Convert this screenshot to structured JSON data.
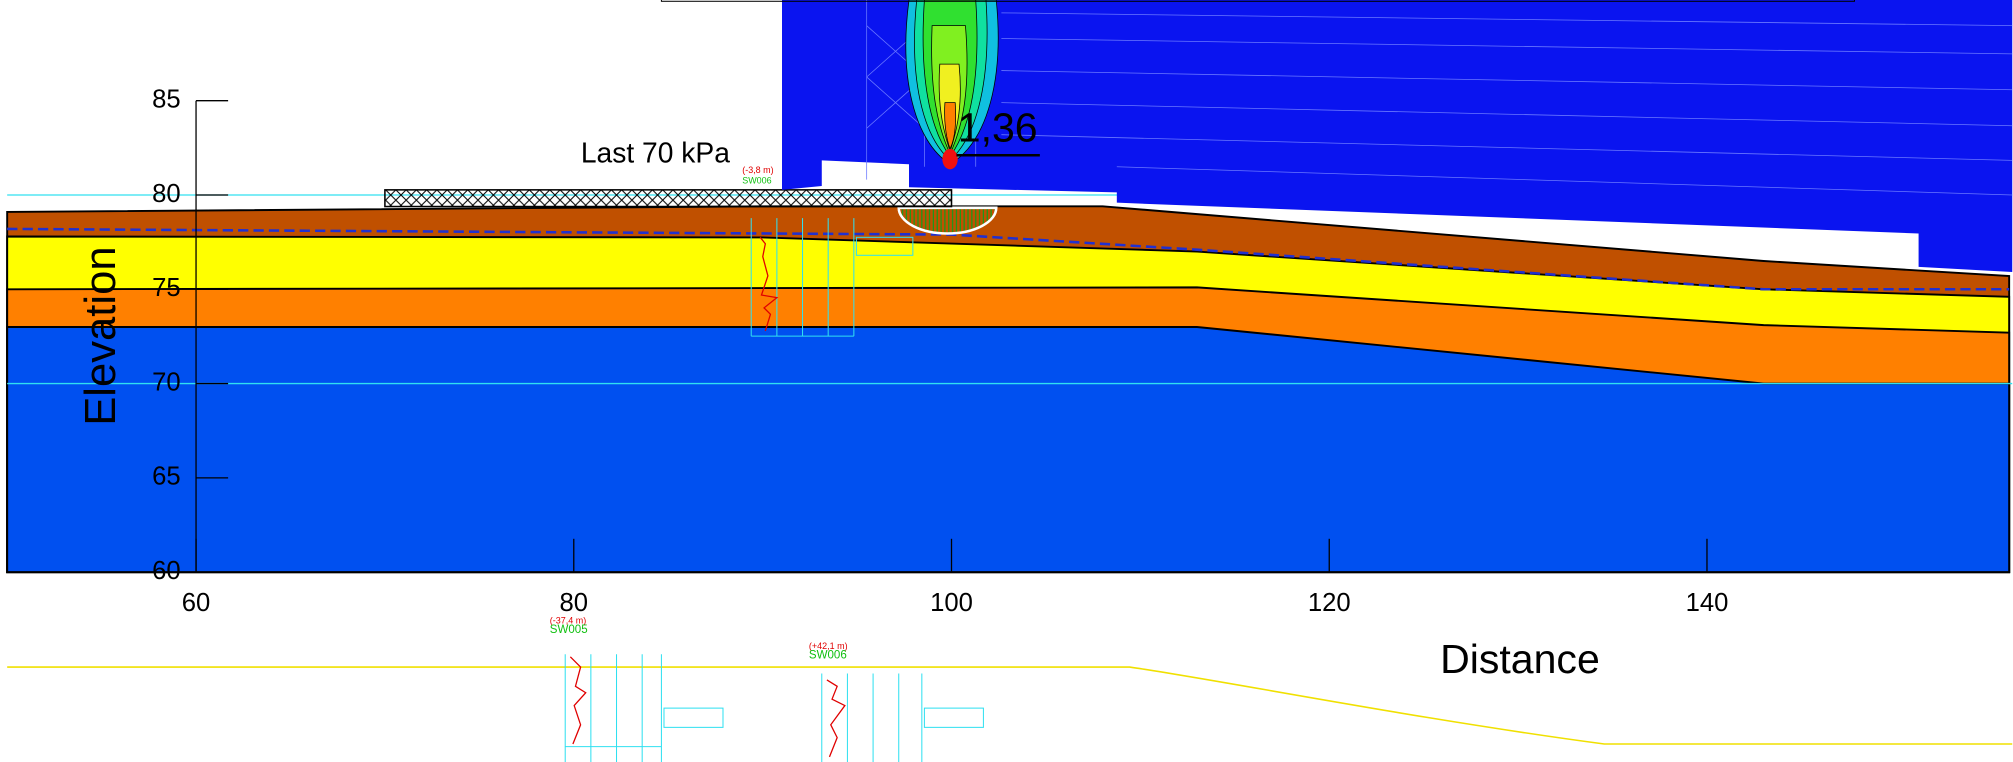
{
  "chart_data": {
    "type": "section",
    "xlabel": "Distance",
    "ylabel": "Elevation",
    "xlim": [
      50,
      156
    ],
    "ylim": [
      60,
      85
    ],
    "xticks": [
      60,
      80,
      100,
      120,
      140
    ],
    "yticks": [
      60,
      65,
      70,
      75,
      80,
      85
    ],
    "reference_lines": [
      80,
      70
    ],
    "reference_color": "#30e0f0",
    "layers": [
      {
        "color": "#c05000",
        "x": [
          50,
          90,
          108,
          143,
          156
        ],
        "top": [
          79.1,
          79.4,
          79.4,
          76.5,
          75.7
        ]
      },
      {
        "color": "#ffff00",
        "x": [
          50,
          90,
          113,
          143,
          156
        ],
        "top": [
          77.8,
          77.75,
          77.0,
          75,
          74.6
        ]
      },
      {
        "color": "#ff8000",
        "x": [
          50,
          113,
          143,
          156
        ],
        "top": [
          75,
          75.1,
          73.1,
          72.7
        ]
      },
      {
        "color": "#0050f0",
        "x": [
          50,
          113,
          143,
          156
        ],
        "top": [
          73,
          73,
          70,
          70
        ]
      }
    ],
    "water_table": {
      "color": "#2030d0",
      "x": [
        50,
        100,
        113,
        143,
        156
      ],
      "y": [
        78.2,
        77.9,
        77.1,
        75,
        75
      ]
    },
    "load": {
      "label": "Last 70 kPa",
      "x": [
        70,
        100
      ]
    },
    "factor_of_safety": "1,36",
    "annotations": [
      "(-3,8 m)",
      "SW006",
      "(-37,4 m)",
      "SW005",
      "(+42,1 m)",
      "SW006"
    ]
  }
}
